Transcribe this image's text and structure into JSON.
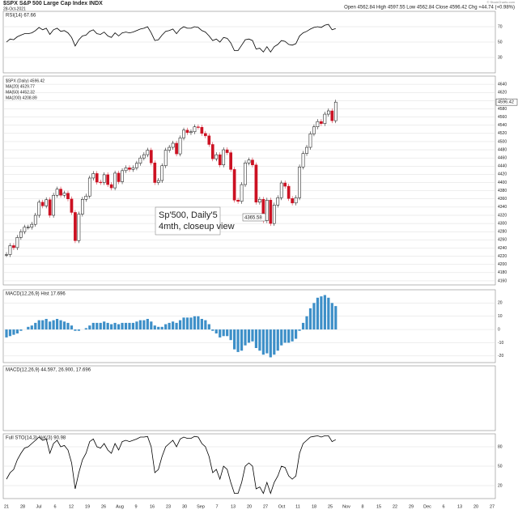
{
  "chart_data": {
    "type": "stock",
    "title": "$SPX S&P 500 Large Cap Index INDX",
    "date": "28-Oct-2021",
    "quote": "Open 4562.84  High 4597.55  Low 4562.84  Close 4596.42  Chg +44.74 (+0.98%)",
    "watermark": "© StockCharts.com",
    "annotation": [
      "Sp'500, Daily'5",
      "4mth, closeup view"
    ],
    "level_label": "4365.58",
    "x_labels": [
      "21",
      "28",
      "Jul",
      "6",
      "12",
      "19",
      "26",
      "Aug",
      "9",
      "16",
      "23",
      "30",
      "Sep",
      "7",
      "13",
      "20",
      "27",
      "Oct",
      "11",
      "18",
      "25",
      "Nov",
      "8",
      "15",
      "22",
      "29",
      "Dec",
      "6",
      "13",
      "20",
      "27"
    ],
    "price": {
      "legend": [
        "$SPX (Daily) 4596.42",
        "MA(20) 4529.77",
        "MA(50) 4452.32",
        "MA(200) 4208.89"
      ],
      "last_label": "4596.42",
      "up_color": "#000000",
      "down_color": "#cc1122",
      "ylim": [
        4150,
        4660
      ],
      "yticks": [
        4160,
        4180,
        4200,
        4220,
        4240,
        4260,
        4280,
        4300,
        4320,
        4340,
        4360,
        4380,
        4400,
        4420,
        4440,
        4460,
        4480,
        4500,
        4520,
        4540,
        4560,
        4580,
        4600,
        4620,
        4640
      ],
      "values": [
        4224,
        4246,
        4241,
        4266,
        4280,
        4291,
        4291,
        4298,
        4320,
        4352,
        4343,
        4358,
        4320,
        4369,
        4384,
        4369,
        4374,
        4360,
        4327,
        4258,
        4323,
        4359,
        4367,
        4411,
        4422,
        4401,
        4400,
        4419,
        4395,
        4387,
        4423,
        4402,
        4429,
        4436,
        4432,
        4436,
        4447,
        4460,
        4468,
        4479,
        4448,
        4400,
        4405,
        4441,
        4479,
        4486,
        4496,
        4470,
        4509,
        4528,
        4522,
        4524,
        4536,
        4535,
        4520,
        4514,
        4493,
        4458,
        4468,
        4443,
        4480,
        4473,
        4432,
        4357,
        4354,
        4395,
        4448,
        4455,
        4443,
        4352,
        4359,
        4307,
        4357,
        4300,
        4345,
        4363,
        4399,
        4391,
        4361,
        4350,
        4363,
        4438,
        4471,
        4486,
        4519,
        4536,
        4549,
        4544,
        4567,
        4575,
        4551,
        4596.42
      ]
    },
    "rsi": {
      "label": "RSI(14) 67.66",
      "color": "#000000",
      "ylim": [
        10,
        90
      ],
      "yticks": [
        30,
        50,
        70
      ],
      "values": [
        50,
        54,
        53,
        57,
        59,
        61,
        61,
        62,
        65,
        69,
        66,
        68,
        60,
        66,
        68,
        64,
        65,
        62,
        56,
        45,
        53,
        58,
        59,
        64,
        66,
        61,
        60,
        63,
        58,
        56,
        62,
        58,
        62,
        63,
        62,
        63,
        65,
        67,
        68,
        70,
        62,
        52,
        53,
        59,
        64,
        65,
        67,
        61,
        67,
        70,
        68,
        68,
        70,
        69,
        65,
        63,
        58,
        52,
        54,
        50,
        56,
        55,
        49,
        39,
        39,
        46,
        53,
        54,
        52,
        41,
        42,
        37,
        44,
        37,
        44,
        47,
        52,
        51,
        47,
        46,
        48,
        58,
        62,
        64,
        67,
        69,
        70,
        69,
        72,
        73,
        66,
        67.66
      ]
    },
    "macd_hist": {
      "label": "MACD(12,26,9) Hist 17.696",
      "color": "#3d8fc8",
      "ylim": [
        -25,
        30
      ],
      "yticks": [
        -20,
        -10,
        0,
        10,
        20
      ],
      "values": [
        -6,
        -5,
        -4,
        -3,
        -1,
        0,
        2,
        3,
        5,
        7,
        7,
        8,
        6,
        7,
        8,
        7,
        6,
        5,
        3,
        -1,
        -1,
        0,
        1,
        3,
        5,
        5,
        5,
        6,
        5,
        4,
        5,
        4,
        5,
        5,
        5,
        5,
        6,
        7,
        7,
        8,
        6,
        3,
        2,
        2,
        4,
        5,
        6,
        5,
        7,
        9,
        9,
        9,
        10,
        10,
        8,
        7,
        4,
        -1,
        -3,
        -6,
        -5,
        -5,
        -8,
        -15,
        -17,
        -16,
        -12,
        -10,
        -9,
        -14,
        -16,
        -19,
        -18,
        -21,
        -19,
        -16,
        -12,
        -10,
        -10,
        -9,
        -7,
        -1,
        5,
        10,
        16,
        20,
        24,
        25,
        26,
        24,
        20,
        17.696
      ]
    },
    "macd": {
      "label": "MACD(12,26,9) 44.597, 26.900, 17.696"
    },
    "sto": {
      "label": "Full STO(14,3) %K(3) 90.98",
      "color": "#000000",
      "ylim": [
        0,
        100
      ],
      "yticks": [
        20,
        50,
        80
      ],
      "values": [
        30,
        40,
        45,
        60,
        70,
        78,
        80,
        85,
        90,
        95,
        90,
        92,
        70,
        85,
        90,
        80,
        82,
        75,
        55,
        15,
        40,
        60,
        70,
        88,
        92,
        80,
        78,
        85,
        75,
        70,
        85,
        75,
        88,
        90,
        88,
        90,
        92,
        95,
        95,
        96,
        80,
        40,
        45,
        65,
        80,
        85,
        90,
        80,
        92,
        95,
        93,
        93,
        96,
        95,
        85,
        80,
        65,
        40,
        45,
        30,
        50,
        45,
        25,
        8,
        8,
        25,
        50,
        55,
        50,
        15,
        18,
        8,
        25,
        8,
        25,
        35,
        50,
        48,
        35,
        30,
        35,
        70,
        85,
        90,
        95,
        96,
        97,
        95,
        97,
        97,
        88,
        90.98
      ]
    }
  }
}
